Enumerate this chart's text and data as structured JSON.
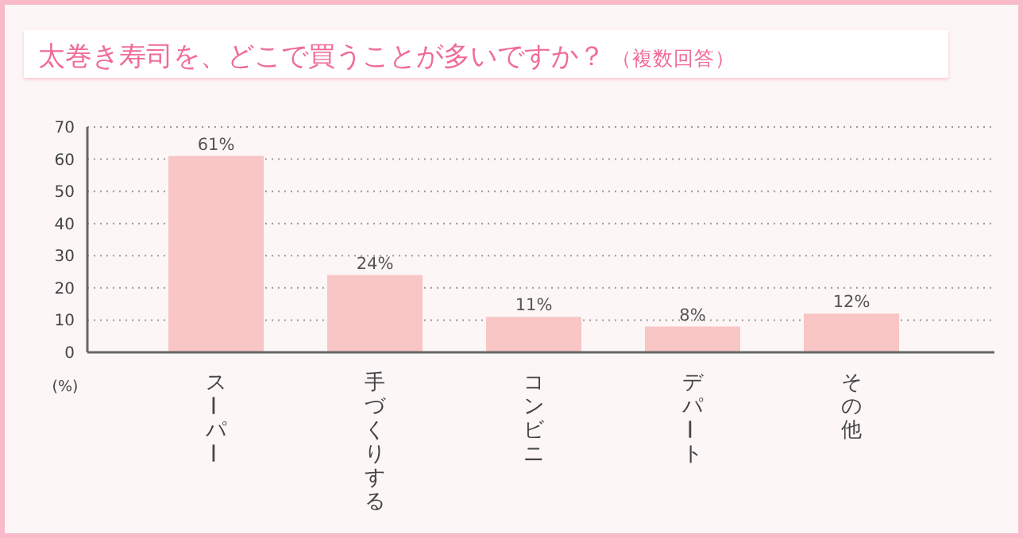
{
  "chart_data": {
    "type": "bar",
    "title": "太巻き寿司を、どこで買うことが多いですか？",
    "subtitle": "（複数回答）",
    "ylabel": "(%)",
    "categories": [
      "スーパー",
      "手づくりする",
      "コンビニ",
      "デパート",
      "その他"
    ],
    "values": [
      61,
      24,
      11,
      8,
      12
    ],
    "color": "#f7c6c5",
    "value_labels": [
      "61%",
      "24%",
      "11%",
      "8%",
      "12%"
    ],
    "ylim": [
      0,
      70
    ],
    "yticks": [
      0,
      10,
      20,
      30,
      40,
      50,
      60,
      70
    ],
    "grid": "y"
  }
}
